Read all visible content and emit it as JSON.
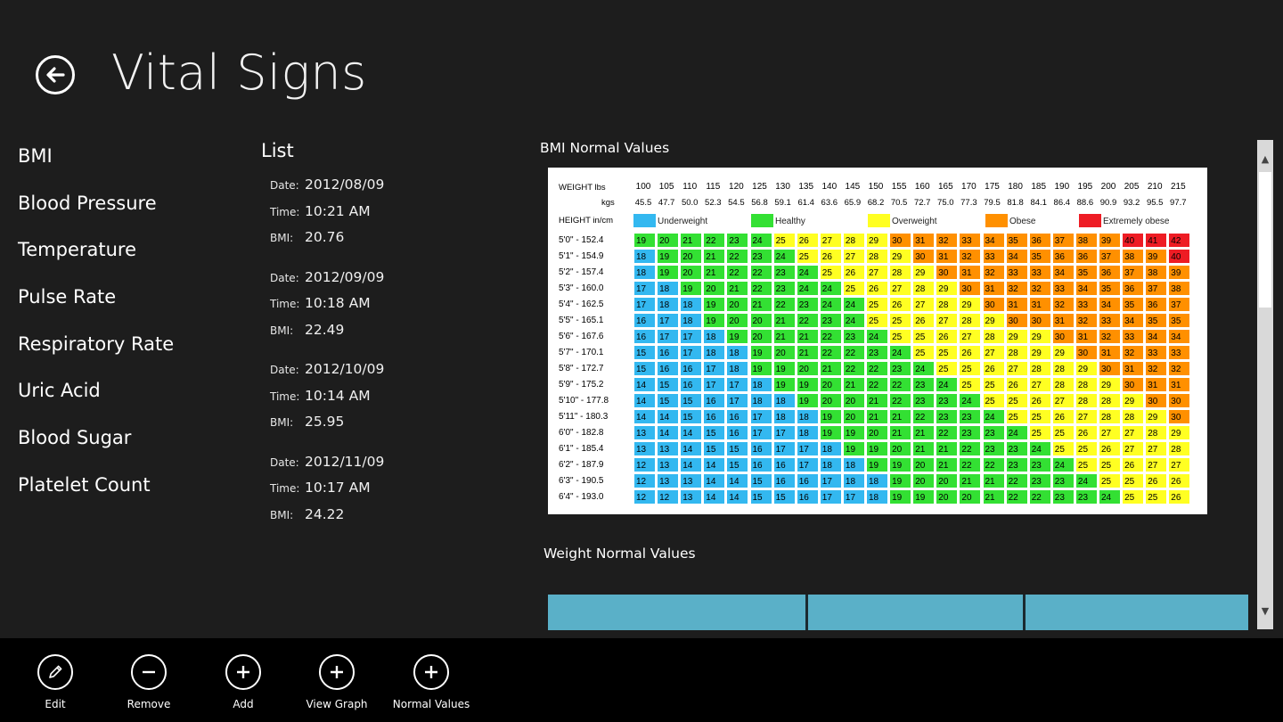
{
  "header": {
    "title": "Vital Signs",
    "back_icon": "back-arrow-icon"
  },
  "nav": {
    "items": [
      "BMI",
      "Blood Pressure",
      "Temperature",
      "Pulse Rate",
      "Respiratory Rate",
      "Uric Acid",
      "Blood Sugar",
      "Platelet Count"
    ]
  },
  "list": {
    "title": "List",
    "labels": {
      "date": "Date:",
      "time": "Time:",
      "bmi": "BMI:"
    },
    "records": [
      {
        "date": "2012/08/09",
        "time": "10:21 AM",
        "bmi": "20.76"
      },
      {
        "date": "2012/09/09",
        "time": "10:18 AM",
        "bmi": "22.49"
      },
      {
        "date": "2012/10/09",
        "time": "10:14 AM",
        "bmi": "25.95"
      },
      {
        "date": "2012/11/09",
        "time": "10:17 AM",
        "bmi": "24.22"
      }
    ]
  },
  "bmi_panel": {
    "title": "BMI Normal Values",
    "weight_label": "WEIGHT lbs",
    "kgs_label": "kgs",
    "height_label": "HEIGHT in/cm",
    "lbs": [
      "100",
      "105",
      "110",
      "115",
      "120",
      "125",
      "130",
      "135",
      "140",
      "145",
      "150",
      "155",
      "160",
      "165",
      "170",
      "175",
      "180",
      "185",
      "190",
      "195",
      "200",
      "205",
      "210",
      "215"
    ],
    "kgs": [
      "45.5",
      "47.7",
      "50.0",
      "52.3",
      "54.5",
      "56.8",
      "59.1",
      "61.4",
      "63.6",
      "65.9",
      "68.2",
      "70.5",
      "72.7",
      "75.0",
      "77.3",
      "79.5",
      "81.8",
      "84.1",
      "86.4",
      "88.6",
      "90.9",
      "93.2",
      "95.5",
      "97.7"
    ],
    "legend": [
      {
        "label": "Underweight",
        "color": "#33b8f0"
      },
      {
        "label": "Healthy",
        "color": "#33e033"
      },
      {
        "label": "Overweight",
        "color": "#ffff22"
      },
      {
        "label": "Obese",
        "color": "#ff9000"
      },
      {
        "label": "Extremely obese",
        "color": "#ee1c24"
      }
    ],
    "heights": [
      "5'0\"  -  152.4",
      "5'1\"  -  154.9",
      "5'2\"  -  157.4",
      "5'3\"  -  160.0",
      "5'4\"  -  162.5",
      "5'5\"  -  165.1",
      "5'6\"  -  167.6",
      "5'7\"  -  170.1",
      "5'8\"  -  172.7",
      "5'9\"  -  175.2",
      "5'10\" - 177.8",
      "5'11\" - 180.3",
      "6'0\"  -  182.8",
      "6'1\"  -  185.4",
      "6'2\"  -  187.9",
      "6'3\"  -  190.5",
      "6'4\"  -  193.0"
    ],
    "rows": [
      [
        19,
        20,
        21,
        22,
        23,
        24,
        25,
        26,
        27,
        28,
        29,
        30,
        31,
        32,
        33,
        34,
        35,
        36,
        37,
        38,
        39,
        40,
        41,
        42
      ],
      [
        18,
        19,
        20,
        21,
        22,
        23,
        24,
        25,
        26,
        27,
        28,
        29,
        30,
        31,
        32,
        33,
        34,
        35,
        36,
        36,
        37,
        38,
        39,
        40
      ],
      [
        18,
        19,
        20,
        21,
        22,
        22,
        23,
        24,
        25,
        26,
        27,
        28,
        29,
        30,
        31,
        32,
        33,
        33,
        34,
        35,
        36,
        37,
        38,
        39
      ],
      [
        17,
        18,
        19,
        20,
        21,
        22,
        23,
        24,
        24,
        25,
        26,
        27,
        28,
        29,
        30,
        31,
        32,
        32,
        33,
        34,
        35,
        36,
        37,
        38
      ],
      [
        17,
        18,
        18,
        19,
        20,
        21,
        22,
        23,
        24,
        24,
        25,
        26,
        27,
        28,
        29,
        30,
        31,
        31,
        32,
        33,
        34,
        35,
        36,
        37
      ],
      [
        16,
        17,
        18,
        19,
        20,
        20,
        21,
        22,
        23,
        24,
        25,
        25,
        26,
        27,
        28,
        29,
        30,
        30,
        31,
        32,
        33,
        34,
        35,
        35
      ],
      [
        16,
        17,
        17,
        18,
        19,
        20,
        21,
        21,
        22,
        23,
        24,
        25,
        25,
        26,
        27,
        28,
        29,
        29,
        30,
        31,
        32,
        33,
        34,
        34
      ],
      [
        15,
        16,
        17,
        18,
        18,
        19,
        20,
        21,
        22,
        22,
        23,
        24,
        25,
        25,
        26,
        27,
        28,
        29,
        29,
        30,
        31,
        32,
        33,
        33
      ],
      [
        15,
        16,
        16,
        17,
        18,
        19,
        19,
        20,
        21,
        22,
        22,
        23,
        24,
        25,
        25,
        26,
        27,
        28,
        28,
        29,
        30,
        31,
        32,
        32
      ],
      [
        14,
        15,
        16,
        17,
        17,
        18,
        19,
        19,
        20,
        21,
        22,
        22,
        23,
        24,
        25,
        25,
        26,
        27,
        28,
        28,
        29,
        30,
        31,
        31
      ],
      [
        14,
        15,
        15,
        16,
        17,
        18,
        18,
        19,
        20,
        20,
        21,
        22,
        23,
        23,
        24,
        25,
        25,
        26,
        27,
        28,
        28,
        29,
        30,
        30
      ],
      [
        14,
        14,
        15,
        16,
        16,
        17,
        18,
        18,
        19,
        20,
        21,
        21,
        22,
        23,
        23,
        24,
        25,
        25,
        26,
        27,
        28,
        28,
        29,
        30
      ],
      [
        13,
        14,
        14,
        15,
        16,
        17,
        17,
        18,
        19,
        19,
        20,
        21,
        21,
        22,
        23,
        23,
        24,
        25,
        25,
        26,
        27,
        27,
        28,
        29
      ],
      [
        13,
        13,
        14,
        15,
        15,
        16,
        17,
        17,
        18,
        19,
        19,
        20,
        21,
        21,
        22,
        23,
        23,
        24,
        25,
        25,
        26,
        27,
        27,
        28
      ],
      [
        12,
        13,
        14,
        14,
        15,
        16,
        16,
        17,
        18,
        18,
        19,
        19,
        20,
        21,
        22,
        22,
        23,
        23,
        24,
        25,
        25,
        26,
        27,
        27
      ],
      [
        12,
        13,
        13,
        14,
        14,
        15,
        16,
        16,
        17,
        18,
        18,
        19,
        20,
        20,
        21,
        21,
        22,
        23,
        23,
        24,
        25,
        25,
        26,
        26
      ],
      [
        12,
        12,
        13,
        14,
        14,
        15,
        15,
        16,
        17,
        17,
        18,
        19,
        19,
        20,
        20,
        21,
        22,
        22,
        23,
        23,
        24,
        25,
        25,
        26
      ]
    ]
  },
  "weight_panel": {
    "title": "Weight Normal Values",
    "bar_color": "#5ab0c8"
  },
  "app_bar": {
    "buttons": [
      {
        "label": "Edit",
        "icon": "pencil-icon"
      },
      {
        "label": "Remove",
        "icon": "minus-icon"
      },
      {
        "label": "Add",
        "icon": "plus-icon"
      },
      {
        "label": "View Graph",
        "icon": "plus-icon"
      },
      {
        "label": "Normal Values",
        "icon": "plus-icon"
      }
    ]
  },
  "colors": {
    "background": "#1d1d1d",
    "app_bar": "#000000"
  }
}
